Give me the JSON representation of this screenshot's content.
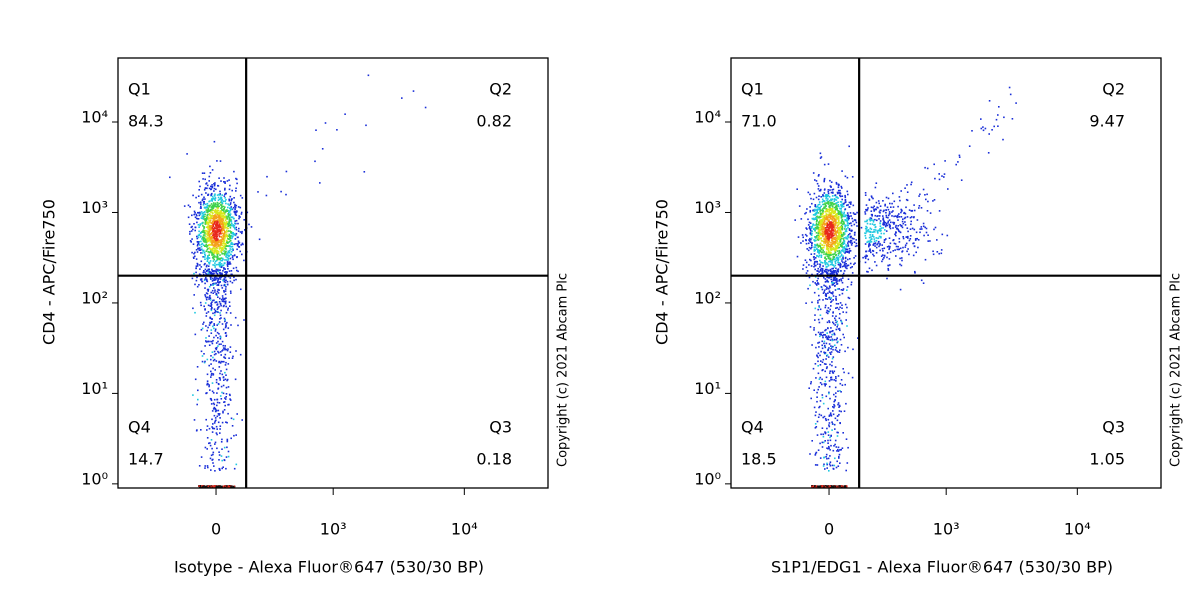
{
  "chart_data": [
    {
      "type": "flow-quadrant",
      "x_label": "Isotype - Alexa Fluor®647 (530/30 BP)",
      "y_label": "CD4 - APC/Fire750",
      "copyright": "Copyright (c) 2021 Abcam Plc",
      "xscale": "biexponential",
      "yscale": "log",
      "xlim": [
        -705,
        43000
      ],
      "ylim": [
        0.9,
        51000
      ],
      "xticks": [
        0,
        {
          "value": 1000,
          "label": "10³"
        },
        {
          "value": 10000,
          "label": "10⁴"
        }
      ],
      "yticks": [
        {
          "value": 1,
          "label": "10⁰"
        },
        {
          "value": 10,
          "label": "10¹"
        },
        {
          "value": 100,
          "label": "10²"
        },
        {
          "value": 1000,
          "label": "10³"
        },
        {
          "value": 10000,
          "label": "10⁴"
        }
      ],
      "gate": {
        "x": 145,
        "y": 200
      },
      "quadrants": {
        "names": [
          "Q1",
          "Q2",
          "Q4",
          "Q3"
        ],
        "values": [
          84.3,
          0.82,
          14.7,
          0.18
        ]
      }
    },
    {
      "type": "flow-quadrant",
      "x_label": "S1P1/EDG1 - Alexa Fluor®647 (530/30 BP)",
      "y_label": "CD4 - APC/Fire750",
      "copyright": "Copyright (c) 2021 Abcam Plc",
      "xscale": "biexponential",
      "yscale": "log",
      "xlim": [
        -705,
        43000
      ],
      "ylim": [
        0.9,
        51000
      ],
      "xticks": [
        0,
        {
          "value": 1000,
          "label": "10³"
        },
        {
          "value": 10000,
          "label": "10⁴"
        }
      ],
      "yticks": [
        {
          "value": 1,
          "label": "10⁰"
        },
        {
          "value": 10,
          "label": "10¹"
        },
        {
          "value": 100,
          "label": "10²"
        },
        {
          "value": 1000,
          "label": "10³"
        },
        {
          "value": 10000,
          "label": "10⁴"
        }
      ],
      "gate": {
        "x": 145,
        "y": 200
      },
      "quadrants": {
        "names": [
          "Q1",
          "Q2",
          "Q4",
          "Q3"
        ],
        "values": [
          71.0,
          9.47,
          18.5,
          1.05
        ],
        "value_labels": [
          "71.0",
          "9.47",
          "18.5",
          "1.05"
        ]
      }
    }
  ]
}
